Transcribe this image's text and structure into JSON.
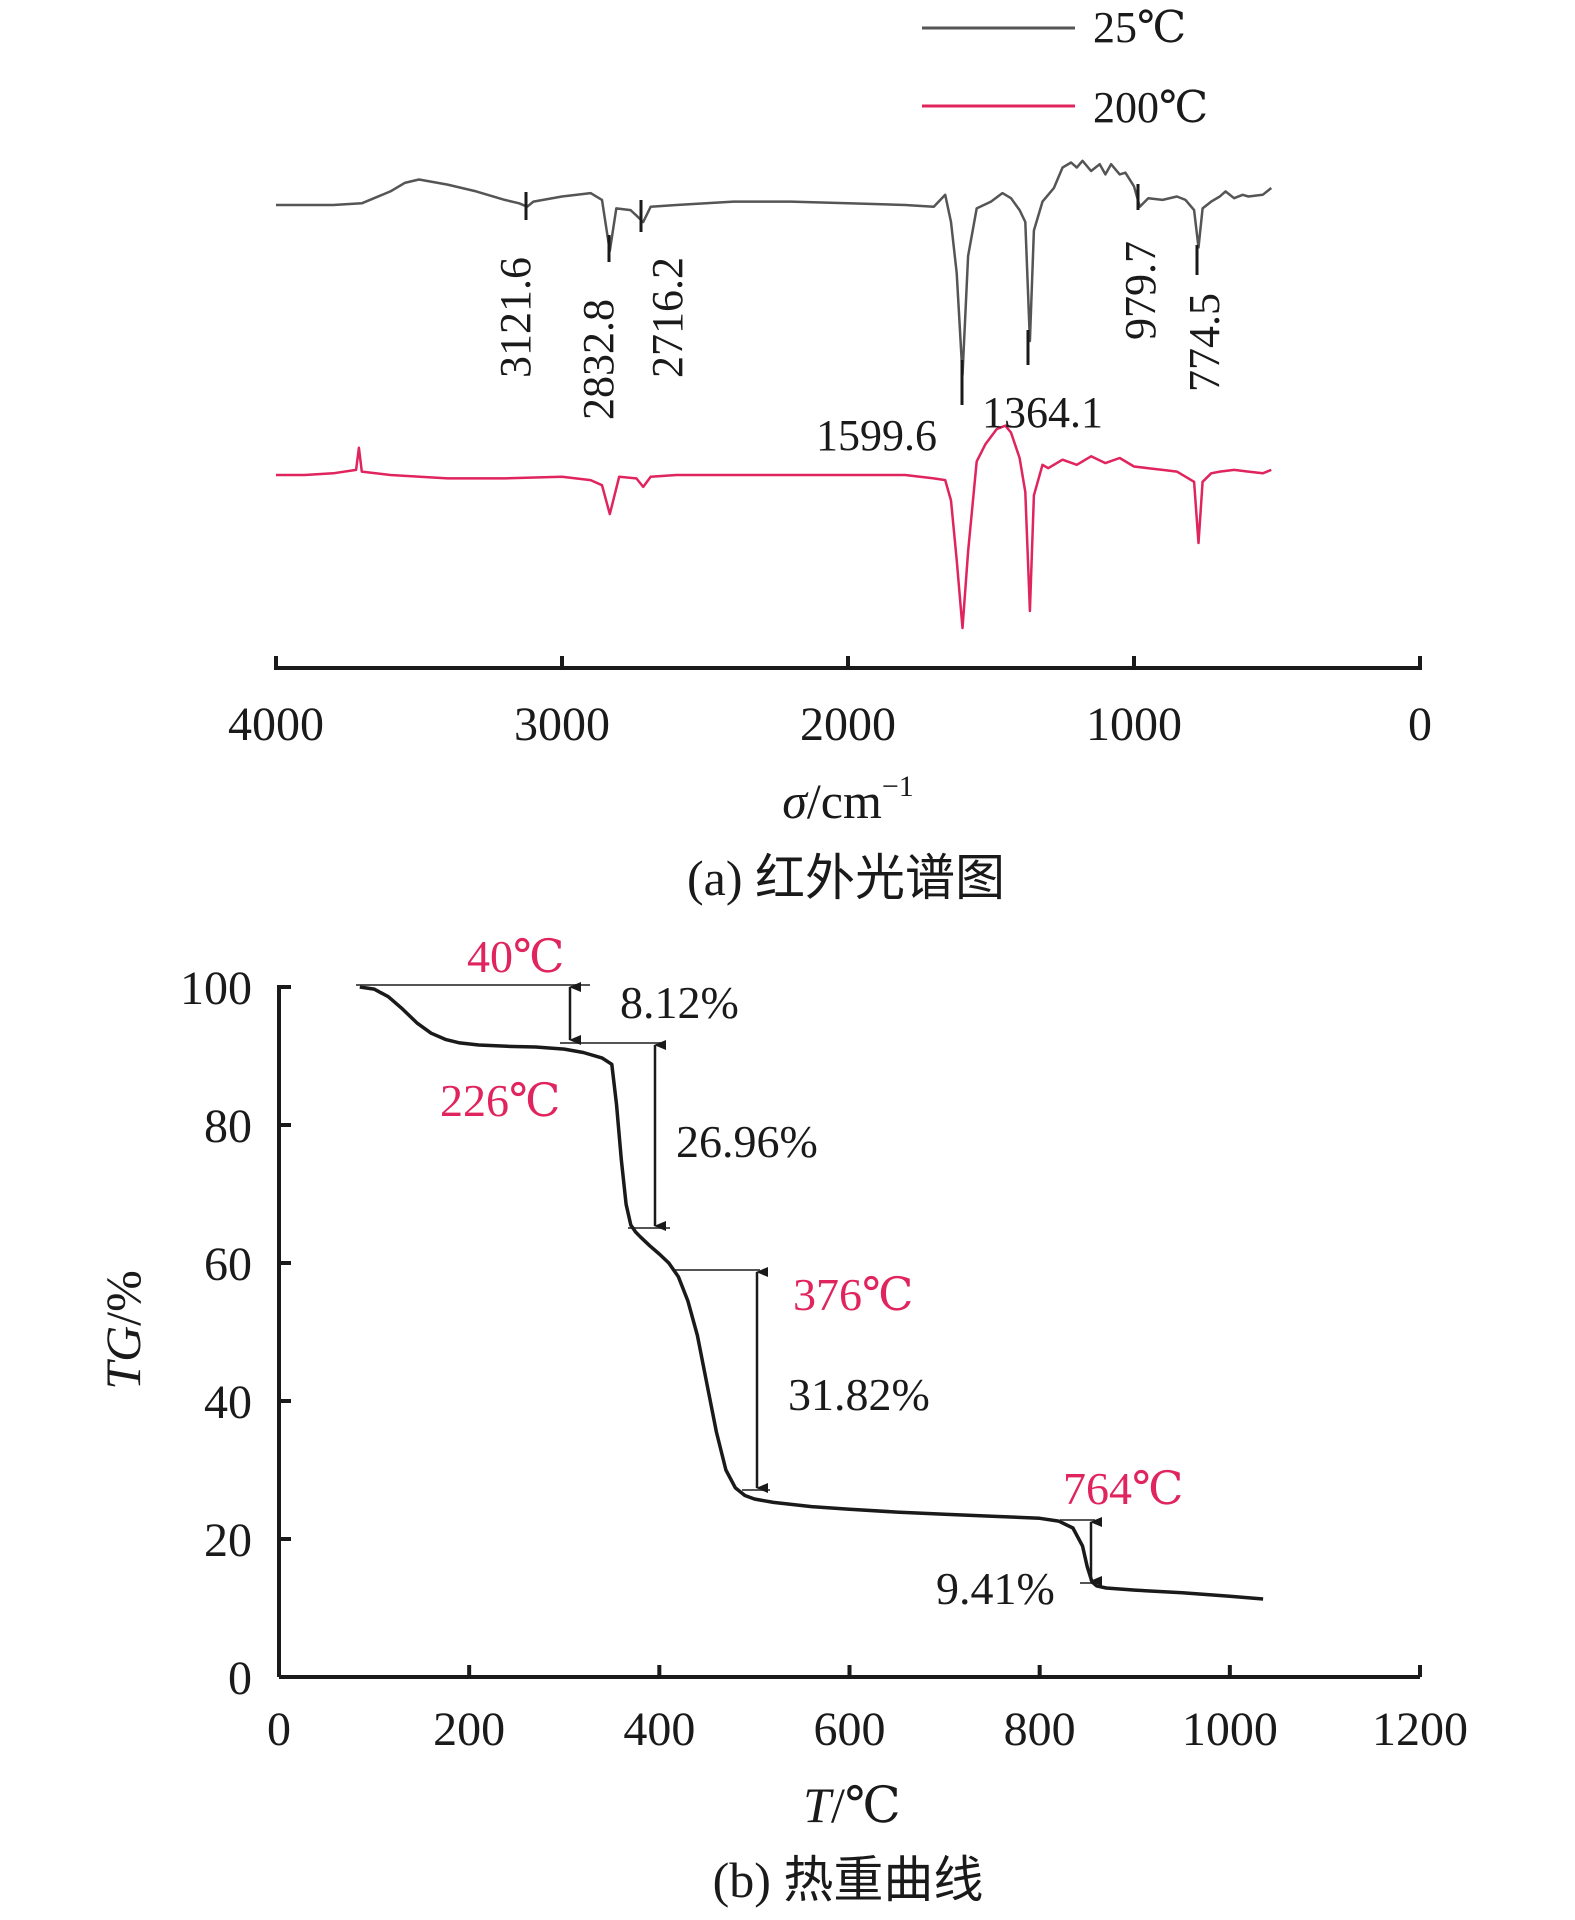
{
  "colors": {
    "ink": "#1a1a1a",
    "spectrum_25": "#555555",
    "spectrum_200": "#e0245e",
    "temp_label": "#e0245e",
    "guide": "#555555"
  },
  "chart_data": [
    {
      "type": "line",
      "panel": "a",
      "caption": "(a) 红外光谱图",
      "xlabel_symbol": "σ",
      "xlabel_unit": "/cm",
      "xlabel_sup": "−1",
      "xlim": [
        4000,
        0
      ],
      "xticks": [
        4000,
        3000,
        2000,
        1000,
        0
      ],
      "y_axis_shown": false,
      "series": [
        {
          "name": "25℃",
          "x": [
            4000,
            3900,
            3800,
            3700,
            3600,
            3550,
            3500,
            3400,
            3300,
            3200,
            3150,
            3121.6,
            3100,
            3000,
            2900,
            2860,
            2832.8,
            2810,
            2760,
            2716.2,
            2690,
            2600,
            2400,
            2200,
            2000,
            1800,
            1700,
            1660,
            1640,
            1620,
            1599.6,
            1580,
            1550,
            1500,
            1460,
            1430,
            1400,
            1380,
            1364.1,
            1350,
            1320,
            1300,
            1280,
            1250,
            1220,
            1200,
            1180,
            1150,
            1120,
            1100,
            1080,
            1050,
            1030,
            1000,
            979.7,
            950,
            900,
            850,
            820,
            790,
            774.5,
            760,
            730,
            700,
            680,
            650,
            620,
            600,
            550,
            520
          ],
          "y": [
            0,
            0,
            0,
            -0.1,
            -0.8,
            -1.3,
            -1.5,
            -1.2,
            -0.8,
            -0.3,
            -0.1,
            0.1,
            -0.2,
            -0.5,
            -0.7,
            -0.3,
            2.7,
            0.2,
            0.3,
            1.0,
            0.1,
            0,
            -0.2,
            -0.2,
            -0.1,
            0,
            0.1,
            -0.6,
            1.0,
            4.0,
            10.0,
            3.0,
            0.2,
            -0.2,
            -0.7,
            -0.4,
            0.3,
            1.0,
            8.0,
            1.5,
            -0.2,
            -0.6,
            -1.0,
            -2.2,
            -2.5,
            -2.2,
            -2.6,
            -2.0,
            -2.4,
            -1.8,
            -2.4,
            -1.8,
            -1.9,
            -1.1,
            0.1,
            -0.4,
            -0.3,
            -0.5,
            -0.3,
            0.3,
            2.5,
            0.2,
            -0.2,
            -0.5,
            -0.8,
            -0.4,
            -0.6,
            -0.5,
            -0.6,
            -1.0
          ]
        },
        {
          "name": "200℃",
          "x": [
            4000,
            3900,
            3800,
            3720,
            3710,
            3700,
            3600,
            3400,
            3200,
            3000,
            2900,
            2860,
            2832.8,
            2800,
            2740,
            2716.2,
            2690,
            2600,
            2400,
            2200,
            2000,
            1800,
            1700,
            1660,
            1640,
            1620,
            1599.6,
            1580,
            1550,
            1520,
            1480,
            1450,
            1430,
            1400,
            1380,
            1364.1,
            1350,
            1320,
            1300,
            1250,
            1200,
            1150,
            1100,
            1050,
            1000,
            950,
            900,
            850,
            820,
            790,
            774.5,
            760,
            730,
            700,
            650,
            600,
            550,
            520
          ],
          "y": [
            0,
            0,
            -0.1,
            -0.3,
            -1.6,
            -0.2,
            0,
            0.2,
            0.2,
            0.1,
            0.3,
            0.6,
            2.3,
            0.1,
            0.2,
            0.7,
            0.1,
            0,
            0,
            0,
            0,
            0,
            0.2,
            0.3,
            1.5,
            5.0,
            9.0,
            4.5,
            -0.8,
            -1.8,
            -2.7,
            -2.9,
            -2.5,
            -1.0,
            1.0,
            8.0,
            1.2,
            -0.6,
            -0.4,
            -0.9,
            -0.6,
            -1.1,
            -0.7,
            -1.0,
            -0.5,
            -0.4,
            -0.3,
            -0.2,
            0.1,
            0.4,
            4.0,
            0.4,
            -0.1,
            -0.2,
            -0.3,
            -0.2,
            -0.1,
            -0.3
          ]
        }
      ],
      "peak_labels": [
        "3121.6",
        "2832.8",
        "2716.2",
        "1599.6",
        "1364.1",
        "979.7",
        "774.5"
      ]
    },
    {
      "type": "line",
      "panel": "b",
      "caption": "(b) 热重曲线",
      "xlabel_symbol": "T",
      "xlabel_unit": "/℃",
      "ylabel_symbol": "TG",
      "ylabel_unit": "/%",
      "xlim": [
        0,
        1200
      ],
      "ylim": [
        0,
        100
      ],
      "xticks": [
        0,
        200,
        400,
        600,
        800,
        1000,
        1200
      ],
      "yticks": [
        0,
        20,
        40,
        60,
        80,
        100
      ],
      "series": [
        {
          "x": [
            85,
            100,
            115,
            130,
            145,
            160,
            175,
            190,
            210,
            240,
            270,
            300,
            320,
            340,
            350,
            355,
            360,
            365,
            370,
            375,
            380,
            390,
            400,
            410,
            420,
            430,
            440,
            450,
            460,
            470,
            480,
            490,
            500,
            520,
            560,
            600,
            650,
            700,
            750,
            800,
            820,
            835,
            845,
            850,
            855,
            860,
            870,
            900,
            950,
            1000,
            1035
          ],
          "y": [
            100,
            99.7,
            98.6,
            96.8,
            94.8,
            93.3,
            92.4,
            91.9,
            91.6,
            91.4,
            91.3,
            91.0,
            90.5,
            89.7,
            88.8,
            83,
            75,
            68.5,
            65.5,
            64.5,
            63.8,
            62.5,
            61.3,
            60.0,
            58.0,
            54.5,
            49.5,
            42.5,
            35.5,
            30.0,
            27.4,
            26.3,
            25.8,
            25.3,
            24.7,
            24.3,
            23.9,
            23.6,
            23.3,
            23.0,
            22.6,
            21.6,
            19.0,
            16.0,
            13.8,
            13.2,
            12.9,
            12.6,
            12.2,
            11.7,
            11.3
          ]
        }
      ],
      "annotations": [
        {
          "label": "40℃",
          "kind": "temperature"
        },
        {
          "label": "226℃",
          "kind": "temperature"
        },
        {
          "label": "376℃",
          "kind": "temperature"
        },
        {
          "label": "764℃",
          "kind": "temperature"
        },
        {
          "label": "8.12%",
          "kind": "mass_loss",
          "from": 100,
          "to": 91.6
        },
        {
          "label": "26.96%",
          "kind": "mass_loss",
          "from": 91.6,
          "to": 64.7
        },
        {
          "label": "31.82%",
          "kind": "mass_loss",
          "from": 59.0,
          "to": 26.7
        },
        {
          "label": "9.41%",
          "kind": "mass_loss",
          "from": 22.8,
          "to": 13.5
        }
      ]
    }
  ]
}
